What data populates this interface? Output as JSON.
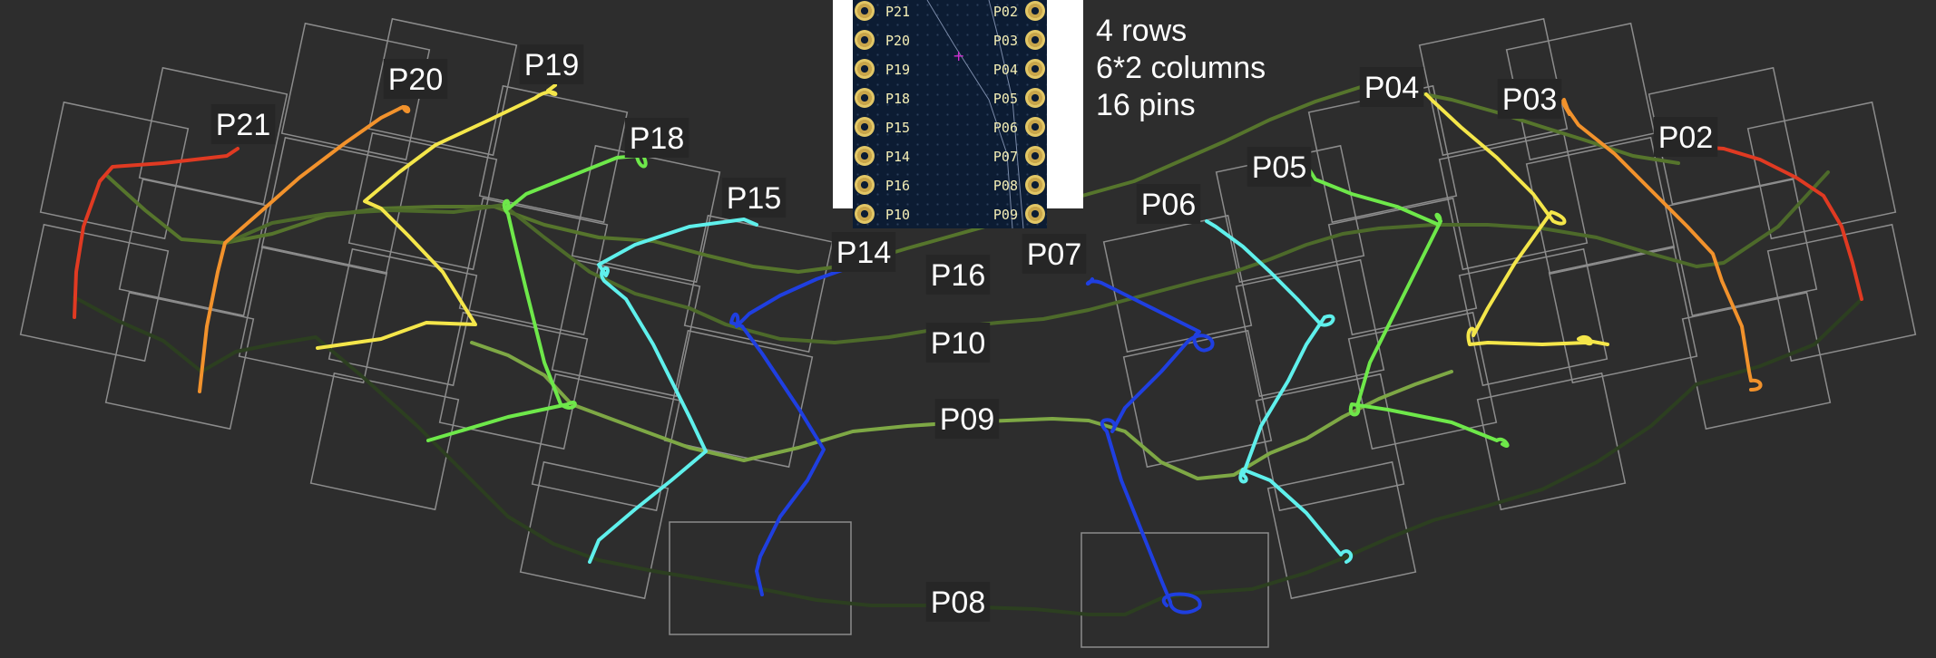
{
  "info": {
    "rows": "4 rows",
    "columns": "6*2 columns",
    "pins": "16 pins"
  },
  "pcb": {
    "left_pins": [
      "P21",
      "P20",
      "P19",
      "P18",
      "P15",
      "P14",
      "P16",
      "P10"
    ],
    "right_pins": [
      "P02",
      "P03",
      "P04",
      "P05",
      "P06",
      "P07",
      "P08",
      "P09"
    ]
  },
  "labels": {
    "P21": "P21",
    "P20": "P20",
    "P19": "P19",
    "P18": "P18",
    "P15": "P15",
    "P14": "P14",
    "P16": "P16",
    "P10": "P10",
    "P09": "P09",
    "P08": "P08",
    "P07": "P07",
    "P06": "P06",
    "P05": "P05",
    "P04": "P04",
    "P03": "P03",
    "P02": "P02"
  },
  "colors": {
    "background": "#2d2d2d",
    "key_outline": "#8c8c8c",
    "P21": "#e03a22",
    "P20": "#f2922c",
    "P19": "#f4e64a",
    "P18": "#6ee84a",
    "P15": "#5ff0ec",
    "P14": "#1f3fe0",
    "P02": "#e03a22",
    "P03": "#f2922c",
    "P04": "#f4e64a",
    "P05": "#6ee84a",
    "P06": "#5ff0ec",
    "P07": "#1f3fe0",
    "row_P16": "#56752c",
    "row_P10": "#4d6a2a",
    "row_P09": "#7ea845",
    "row_P08": "#2c3f20"
  }
}
